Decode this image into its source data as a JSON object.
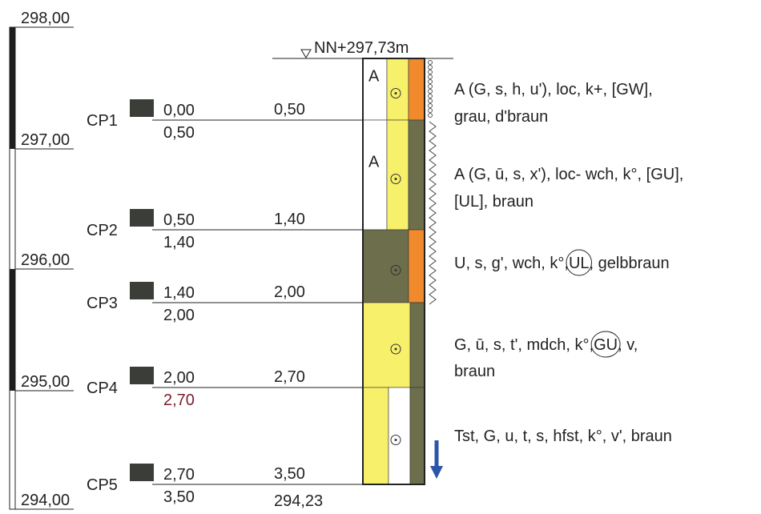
{
  "elevation_scale": {
    "labels": [
      "298,00",
      "297,00",
      "296,00",
      "295,00",
      "294,00"
    ]
  },
  "water_level": "NN+297,73m",
  "samples": [
    {
      "name": "CP1",
      "top": "0,00",
      "bottom": "0,50"
    },
    {
      "name": "CP2",
      "top": "0,50",
      "bottom": "1,40"
    },
    {
      "name": "CP3",
      "top": "1,40",
      "bottom": "2,00"
    },
    {
      "name": "CP4",
      "top": "2,00",
      "bottom": "2,70"
    },
    {
      "name": "CP5",
      "top": "2,70",
      "bottom": "3,50"
    }
  ],
  "layers": [
    {
      "bottom": "0,50",
      "symbol": "A",
      "description": [
        [
          {
            "text": "A (G, s, h, u'), loc, k+, [GW],"
          }
        ],
        [
          {
            "text": "grau, d'braun"
          }
        ]
      ]
    },
    {
      "bottom": "1,40",
      "symbol": "A",
      "description": [
        [
          {
            "text": "A (G, ū, s, x'), loc- wch, k°, [GU],"
          }
        ],
        [
          {
            "text": "[UL], braun"
          }
        ]
      ]
    },
    {
      "bottom": "2,00",
      "description": [
        [
          {
            "text": "U, s, g', wch, k°, "
          },
          {
            "text": "UL",
            "circled": true
          },
          {
            "text": ", gelbbraun"
          }
        ]
      ]
    },
    {
      "bottom": "2,70",
      "description": [
        [
          {
            "text": "G, ū, s, t', mdch, k°, "
          },
          {
            "text": "GU",
            "circled": true
          },
          {
            "text": ", v,"
          }
        ],
        [
          {
            "text": "braun"
          }
        ]
      ]
    },
    {
      "bottom": "3,50",
      "description": [
        [
          {
            "text": "Tst, G, u, t, s, hfst, k°, v', braun"
          }
        ]
      ]
    }
  ],
  "base_elevation": "294,23"
}
